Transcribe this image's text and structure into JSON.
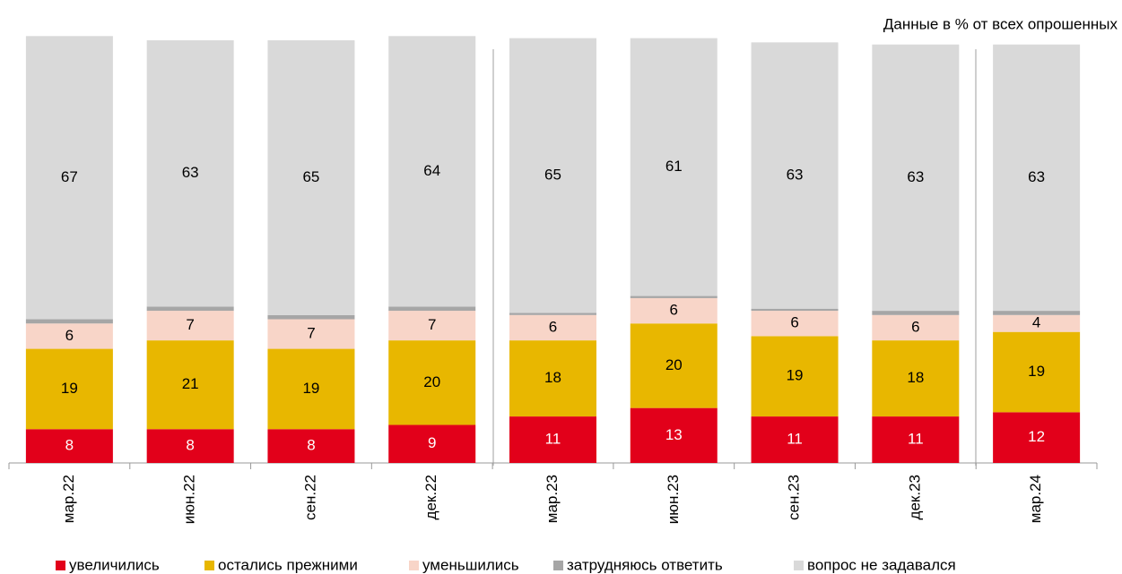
{
  "chart_data": {
    "type": "stacked_bar",
    "subtitle": "Данные в % от всех опрошенных",
    "categories": [
      "мар.22",
      "июн.22",
      "сен.22",
      "дек.22",
      "мар.23",
      "июн.23",
      "сен.23",
      "дек.23",
      "мар.24"
    ],
    "ylim": [
      0,
      100
    ],
    "series": [
      {
        "name": "увеличились",
        "color": "#e2001a",
        "values": [
          8,
          8,
          8,
          9,
          11,
          13,
          11,
          11,
          12
        ]
      },
      {
        "name": "остались прежними",
        "color": "#e8b700",
        "values": [
          19,
          21,
          19,
          20,
          18,
          20,
          19,
          18,
          19
        ]
      },
      {
        "name": "уменьшились",
        "color": "#f8d5c8",
        "values": [
          6,
          7,
          7,
          7,
          6,
          6,
          6,
          6,
          4
        ]
      },
      {
        "name": "затрудняюсь ответить",
        "color": "#a6a6a6",
        "values": [
          1,
          1,
          1,
          1,
          0.5,
          0.5,
          0.5,
          1,
          1
        ],
        "value_labels": [
          "1",
          "1",
          "1",
          "1",
          "<1",
          "<1",
          "<1",
          "1",
          "1"
        ]
      },
      {
        "name": "вопрос не задавался",
        "color": "#d9d9d9",
        "values": [
          67,
          63,
          65,
          64,
          65,
          61,
          63,
          63,
          63
        ]
      }
    ]
  }
}
